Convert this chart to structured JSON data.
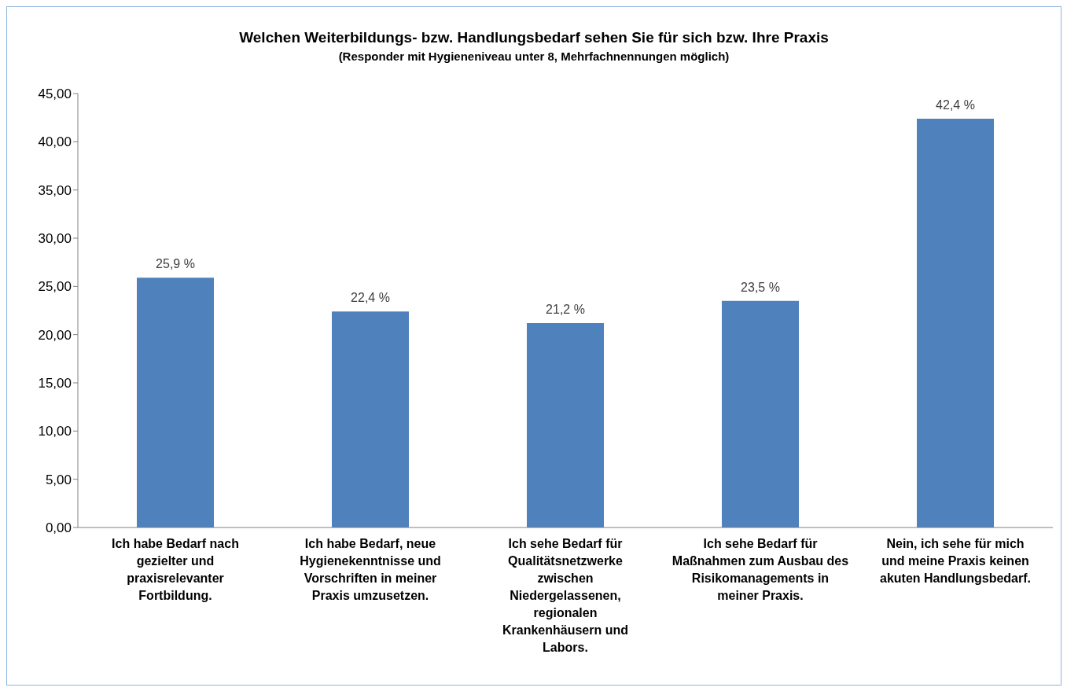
{
  "chart_data": {
    "type": "bar",
    "title": "Welchen Weiterbildungs- bzw. Handlungsbedarf sehen Sie für sich bzw. Ihre Praxis",
    "subtitle": "(Responder mit Hygieneniveau unter 8, Mehrfachnennungen möglich)",
    "categories": [
      "Ich habe Bedarf nach gezielter und praxisrelevanter Fortbildung.",
      "Ich habe Bedarf, neue Hygienekenntnisse und Vorschriften in meiner Praxis umzusetzen.",
      "Ich sehe Bedarf für Qualitätsnetzwerke zwischen Niedergelassenen, regionalen Krankenhäusern und Labors.",
      "Ich sehe Bedarf für Maßnahmen zum Ausbau des Risikomanagements in meiner Praxis.",
      "Nein, ich sehe für mich und meine Praxis keinen akuten Handlungsbedarf."
    ],
    "values": [
      25.9,
      22.4,
      21.2,
      23.5,
      42.4
    ],
    "value_labels": [
      "25,9 %",
      "22,4 %",
      "21,2 %",
      "23,5 %",
      "42,4 %"
    ],
    "color": "#4f81bd",
    "ylim": [
      0,
      45
    ],
    "yticks": [
      {
        "value": 0,
        "label": "0,00"
      },
      {
        "value": 5,
        "label": "5,00"
      },
      {
        "value": 10,
        "label": "10,00"
      },
      {
        "value": 15,
        "label": "15,00"
      },
      {
        "value": 20,
        "label": "20,00"
      },
      {
        "value": 25,
        "label": "25,00"
      },
      {
        "value": 30,
        "label": "30,00"
      },
      {
        "value": 35,
        "label": "35,00"
      },
      {
        "value": 40,
        "label": "40,00"
      },
      {
        "value": 45,
        "label": "45,00"
      }
    ],
    "grid": false,
    "legend": false
  }
}
